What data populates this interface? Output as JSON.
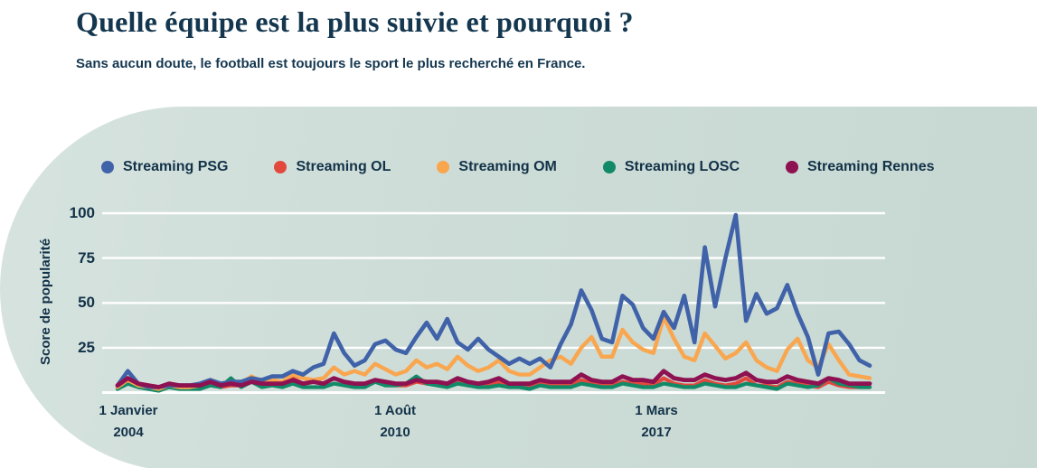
{
  "page": {
    "title": "Quelle équipe est la plus suivie et pourquoi ?",
    "subtitle": "Sans aucun doute, le football est toujours le sport le plus recherché en France."
  },
  "colors": {
    "text_navy": "#123248",
    "blob_light": "#d6e3df",
    "blob_dark": "#c7d8d2",
    "gridline": "#ffffff"
  },
  "chart_data": {
    "type": "line",
    "ylabel": "Score de popularité",
    "ylim": [
      0,
      100
    ],
    "grid": true,
    "legend_position": "top",
    "ytick_labels": [
      "100",
      "75",
      "50",
      "25"
    ],
    "yticks": [
      100,
      75,
      50,
      25,
      0
    ],
    "xticks": [
      {
        "line1": "1 Janvier",
        "line2": "2004"
      },
      {
        "line1": "1 Août",
        "line2": "2010"
      },
      {
        "line1": "1 Mars",
        "line2": "2017"
      }
    ],
    "x_start_year": 2004.0,
    "x_step_years": 0.25,
    "x_unit": "quarter",
    "draw_order": [
      1,
      3,
      2,
      0,
      4
    ],
    "series": [
      {
        "name": "Streaming PSG",
        "color": "#4062a8",
        "stroke_width": 4.6,
        "values": [
          4,
          12,
          5,
          3,
          3,
          4,
          4,
          4,
          5,
          7,
          5,
          6,
          6,
          8,
          7,
          9,
          9,
          12,
          10,
          14,
          16,
          33,
          22,
          15,
          18,
          27,
          29,
          24,
          22,
          31,
          39,
          30,
          41,
          28,
          24,
          30,
          24,
          20,
          16,
          19,
          16,
          19,
          14,
          27,
          38,
          57,
          46,
          30,
          28,
          54,
          49,
          36,
          30,
          45,
          36,
          54,
          28,
          81,
          48,
          75,
          99,
          40,
          55,
          44,
          47,
          60,
          44,
          31,
          10,
          33,
          34,
          27,
          18,
          15
        ]
      },
      {
        "name": "Streaming OL",
        "color": "#e2493c",
        "stroke_width": 4.2,
        "values": [
          3,
          7,
          4,
          2,
          2,
          4,
          3,
          3,
          3,
          5,
          3,
          4,
          4,
          6,
          4,
          5,
          5,
          8,
          5,
          6,
          5,
          8,
          6,
          5,
          4,
          7,
          5,
          4,
          4,
          6,
          5,
          5,
          4,
          6,
          4,
          4,
          4,
          6,
          4,
          3,
          3,
          5,
          4,
          4,
          4,
          7,
          5,
          4,
          4,
          6,
          5,
          5,
          4,
          8,
          5,
          4,
          4,
          7,
          5,
          4,
          5,
          8,
          4,
          4,
          3,
          6,
          5,
          4,
          3,
          6,
          4,
          3,
          3,
          3
        ]
      },
      {
        "name": "Streaming OM",
        "color": "#f9a64f",
        "stroke_width": 4.4,
        "values": [
          3,
          7,
          4,
          3,
          2,
          4,
          3,
          3,
          4,
          6,
          4,
          5,
          5,
          9,
          6,
          7,
          6,
          10,
          8,
          7,
          8,
          14,
          10,
          12,
          10,
          16,
          13,
          10,
          12,
          18,
          14,
          16,
          13,
          20,
          15,
          12,
          14,
          18,
          12,
          10,
          10,
          14,
          18,
          20,
          16,
          25,
          31,
          20,
          20,
          35,
          28,
          24,
          22,
          42,
          30,
          20,
          18,
          33,
          26,
          19,
          22,
          28,
          18,
          14,
          12,
          24,
          30,
          18,
          14,
          27,
          18,
          10,
          9,
          8
        ]
      },
      {
        "name": "Streaming LOSC",
        "color": "#128a67",
        "stroke_width": 4.2,
        "values": [
          2,
          5,
          3,
          2,
          1,
          3,
          2,
          2,
          2,
          4,
          3,
          8,
          3,
          6,
          3,
          4,
          3,
          5,
          3,
          3,
          3,
          5,
          4,
          3,
          3,
          6,
          4,
          4,
          5,
          9,
          5,
          4,
          3,
          5,
          4,
          3,
          3,
          4,
          3,
          3,
          2,
          4,
          3,
          3,
          3,
          5,
          4,
          3,
          3,
          5,
          4,
          3,
          3,
          5,
          4,
          3,
          3,
          5,
          4,
          3,
          3,
          5,
          4,
          3,
          2,
          5,
          4,
          3,
          4,
          8,
          5,
          4,
          3,
          3
        ]
      },
      {
        "name": "Streaming Rennes",
        "color": "#8e1151",
        "stroke_width": 4.8,
        "values": [
          4,
          8,
          5,
          4,
          3,
          5,
          4,
          4,
          4,
          6,
          4,
          5,
          4,
          6,
          5,
          5,
          5,
          7,
          5,
          6,
          5,
          8,
          6,
          5,
          5,
          7,
          6,
          5,
          5,
          7,
          6,
          6,
          5,
          8,
          6,
          5,
          6,
          8,
          5,
          5,
          5,
          7,
          6,
          6,
          6,
          10,
          7,
          6,
          6,
          9,
          7,
          7,
          6,
          12,
          8,
          7,
          7,
          10,
          8,
          7,
          8,
          11,
          7,
          6,
          6,
          9,
          7,
          6,
          5,
          8,
          7,
          5,
          5,
          5
        ]
      }
    ]
  }
}
